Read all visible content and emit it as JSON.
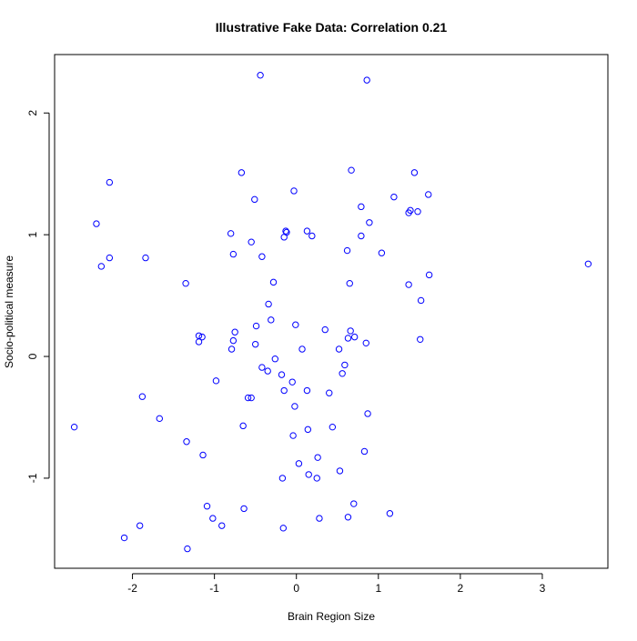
{
  "chart_data": {
    "type": "scatter",
    "title": "Illustrative Fake Data: Correlation 0.21",
    "xlabel": "Brain Region Size",
    "ylabel": "Socio-political measure",
    "xlim": [
      -2.95,
      3.8
    ],
    "ylim": [
      -1.74,
      2.48
    ],
    "x_ticks": [
      -2,
      -1,
      0,
      1,
      2,
      3
    ],
    "y_ticks": [
      -1,
      0,
      1,
      2
    ],
    "grid": false,
    "marker_color": "#0000ff",
    "marker": "open-circle",
    "points": [
      [
        -0.44,
        2.31
      ],
      [
        0.86,
        2.27
      ],
      [
        -2.28,
        1.43
      ],
      [
        -0.67,
        1.51
      ],
      [
        0.67,
        1.53
      ],
      [
        1.44,
        1.51
      ],
      [
        -0.51,
        1.29
      ],
      [
        -0.03,
        1.36
      ],
      [
        1.19,
        1.31
      ],
      [
        1.61,
        1.33
      ],
      [
        0.79,
        1.23
      ],
      [
        1.37,
        1.18
      ],
      [
        1.39,
        1.2
      ],
      [
        1.48,
        1.19
      ],
      [
        -2.44,
        1.09
      ],
      [
        0.89,
        1.1
      ],
      [
        -0.8,
        1.01
      ],
      [
        -0.13,
        1.03
      ],
      [
        -0.12,
        1.02
      ],
      [
        -0.15,
        0.98
      ],
      [
        0.13,
        1.03
      ],
      [
        0.19,
        0.99
      ],
      [
        0.79,
        0.99
      ],
      [
        -0.55,
        0.94
      ],
      [
        0.62,
        0.87
      ],
      [
        1.04,
        0.85
      ],
      [
        -2.28,
        0.81
      ],
      [
        -1.84,
        0.81
      ],
      [
        -0.77,
        0.84
      ],
      [
        -0.42,
        0.82
      ],
      [
        3.56,
        0.76
      ],
      [
        -2.38,
        0.74
      ],
      [
        1.62,
        0.67
      ],
      [
        -1.35,
        0.6
      ],
      [
        -0.28,
        0.61
      ],
      [
        0.65,
        0.6
      ],
      [
        1.37,
        0.59
      ],
      [
        1.52,
        0.46
      ],
      [
        -0.34,
        0.43
      ],
      [
        -0.31,
        0.3
      ],
      [
        -0.49,
        0.25
      ],
      [
        -0.01,
        0.26
      ],
      [
        0.35,
        0.22
      ],
      [
        0.66,
        0.21
      ],
      [
        -0.75,
        0.2
      ],
      [
        -1.19,
        0.17
      ],
      [
        -1.15,
        0.16
      ],
      [
        -1.19,
        0.12
      ],
      [
        -0.77,
        0.13
      ],
      [
        0.63,
        0.15
      ],
      [
        0.71,
        0.16
      ],
      [
        1.51,
        0.14
      ],
      [
        -0.5,
        0.1
      ],
      [
        0.85,
        0.11
      ],
      [
        -0.79,
        0.06
      ],
      [
        0.07,
        0.06
      ],
      [
        0.52,
        0.06
      ],
      [
        -0.26,
        -0.02
      ],
      [
        0.59,
        -0.07
      ],
      [
        -0.42,
        -0.09
      ],
      [
        -0.35,
        -0.12
      ],
      [
        -0.18,
        -0.15
      ],
      [
        0.56,
        -0.14
      ],
      [
        -0.98,
        -0.2
      ],
      [
        -0.05,
        -0.21
      ],
      [
        -0.15,
        -0.28
      ],
      [
        0.13,
        -0.28
      ],
      [
        0.4,
        -0.3
      ],
      [
        -1.88,
        -0.33
      ],
      [
        -0.59,
        -0.34
      ],
      [
        -0.55,
        -0.34
      ],
      [
        -0.02,
        -0.41
      ],
      [
        0.87,
        -0.47
      ],
      [
        -1.67,
        -0.51
      ],
      [
        -0.65,
        -0.57
      ],
      [
        -2.71,
        -0.58
      ],
      [
        0.14,
        -0.6
      ],
      [
        0.44,
        -0.58
      ],
      [
        -0.04,
        -0.65
      ],
      [
        -1.34,
        -0.7
      ],
      [
        -1.14,
        -0.81
      ],
      [
        0.83,
        -0.78
      ],
      [
        0.26,
        -0.83
      ],
      [
        0.03,
        -0.88
      ],
      [
        0.53,
        -0.94
      ],
      [
        0.15,
        -0.97
      ],
      [
        -0.17,
        -1.0
      ],
      [
        0.25,
        -1.0
      ],
      [
        0.7,
        -1.21
      ],
      [
        -1.09,
        -1.23
      ],
      [
        -0.64,
        -1.25
      ],
      [
        1.14,
        -1.29
      ],
      [
        -1.02,
        -1.33
      ],
      [
        0.28,
        -1.33
      ],
      [
        0.63,
        -1.32
      ],
      [
        -1.91,
        -1.39
      ],
      [
        -0.91,
        -1.39
      ],
      [
        -0.16,
        -1.41
      ],
      [
        -2.1,
        -1.49
      ],
      [
        -1.33,
        -1.58
      ]
    ]
  }
}
